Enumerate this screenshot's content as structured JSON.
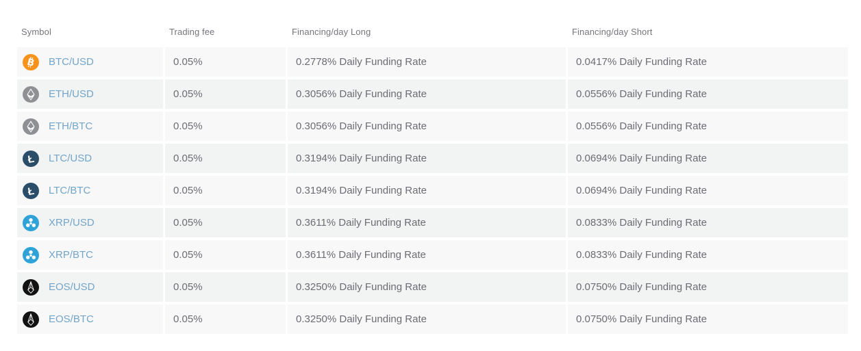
{
  "table": {
    "columns": [
      {
        "key": "symbol",
        "label": "Symbol"
      },
      {
        "key": "trading_fee",
        "label": "Trading fee"
      },
      {
        "key": "financing_long",
        "label": "Financing/day Long"
      },
      {
        "key": "financing_short",
        "label": "Financing/day Short"
      }
    ],
    "rows": [
      {
        "icon": "btc-icon",
        "symbol": "BTC/USD",
        "trading_fee": "0.05%",
        "financing_long": "0.2778% Daily Funding Rate",
        "financing_short": "0.0417% Daily Funding Rate"
      },
      {
        "icon": "eth-icon",
        "symbol": "ETH/USD",
        "trading_fee": "0.05%",
        "financing_long": "0.3056% Daily Funding Rate",
        "financing_short": "0.0556% Daily Funding Rate"
      },
      {
        "icon": "eth-icon",
        "symbol": "ETH/BTC",
        "trading_fee": "0.05%",
        "financing_long": "0.3056% Daily Funding Rate",
        "financing_short": "0.0556% Daily Funding Rate"
      },
      {
        "icon": "ltc-icon",
        "symbol": "LTC/USD",
        "trading_fee": "0.05%",
        "financing_long": "0.3194% Daily Funding Rate",
        "financing_short": "0.0694% Daily Funding Rate"
      },
      {
        "icon": "ltc-icon",
        "symbol": "LTC/BTC",
        "trading_fee": "0.05%",
        "financing_long": "0.3194% Daily Funding Rate",
        "financing_short": "0.0694% Daily Funding Rate"
      },
      {
        "icon": "xrp-icon",
        "symbol": "XRP/USD",
        "trading_fee": "0.05%",
        "financing_long": "0.3611% Daily Funding Rate",
        "financing_short": "0.0833% Daily Funding Rate"
      },
      {
        "icon": "xrp-icon",
        "symbol": "XRP/BTC",
        "trading_fee": "0.05%",
        "financing_long": "0.3611% Daily Funding Rate",
        "financing_short": "0.0833% Daily Funding Rate"
      },
      {
        "icon": "eos-icon",
        "symbol": "EOS/USD",
        "trading_fee": "0.05%",
        "financing_long": "0.3250% Daily Funding Rate",
        "financing_short": "0.0750% Daily Funding Rate"
      },
      {
        "icon": "eos-icon",
        "symbol": "EOS/BTC",
        "trading_fee": "0.05%",
        "financing_long": "0.3250% Daily Funding Rate",
        "financing_short": "0.0750% Daily Funding Rate"
      }
    ]
  },
  "colors": {
    "symbol_link": "#73a5c8",
    "header_text": "#75757c",
    "cell_text": "#6c6c73",
    "row_light": "#f8f8f9",
    "row_dark": "#f2f3f3",
    "coin_btc": "#f7931a",
    "coin_eth": "#8e9093",
    "coin_ltc": "#2a4d69",
    "coin_xrp": "#2fa3d8",
    "coin_eos": "#121212"
  }
}
